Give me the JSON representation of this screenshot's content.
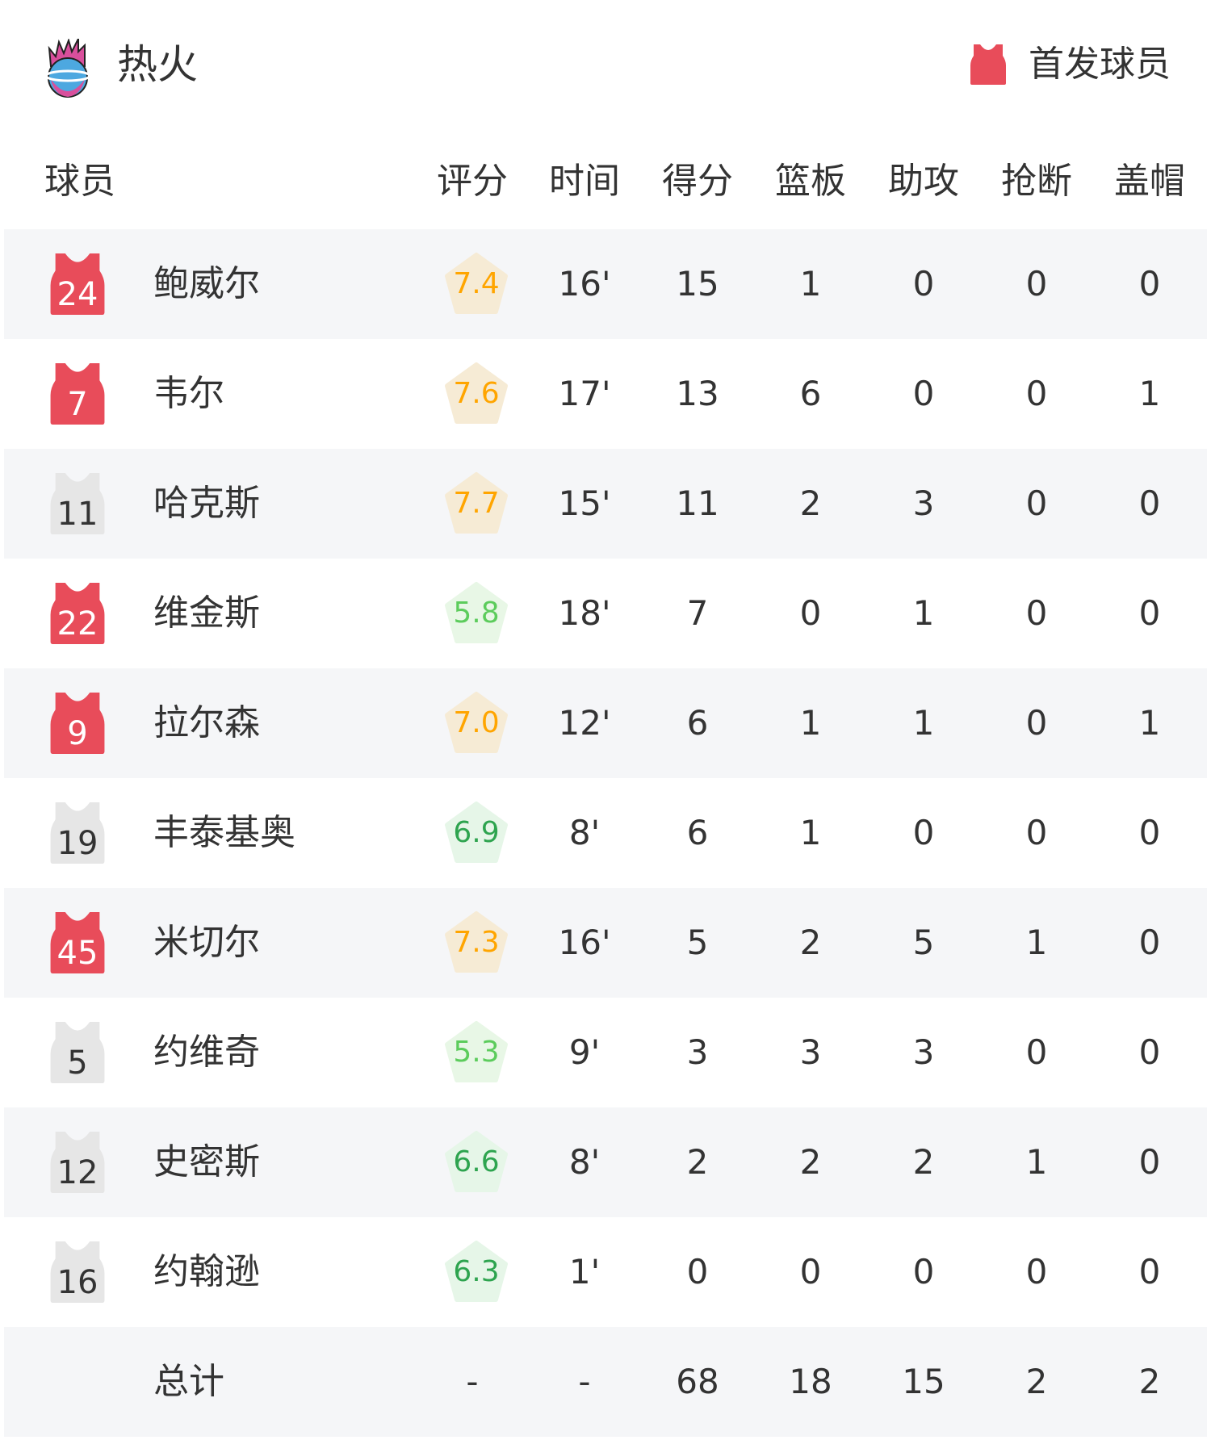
{
  "header": {
    "team": "热火",
    "legend_label": "首发球员"
  },
  "colors": {
    "starter": "#e84c5a",
    "bench": "#e6e6e6",
    "rating_high": "#ffa500",
    "rating_high_bg": "#f6ebd5",
    "rating_mid": "#2ea44f",
    "rating_mid_bg": "#e6f6e8",
    "rating_low": "#5ccc5c",
    "rating_low_bg": "#e8f7e6"
  },
  "columns": [
    "球员",
    "评分",
    "时间",
    "得分",
    "篮板",
    "助攻",
    "抢断",
    "盖帽"
  ],
  "players": [
    {
      "number": "24",
      "starter": true,
      "name": "鲍威尔",
      "rating": "7.4",
      "time": "16'",
      "pts": "15",
      "reb": "1",
      "ast": "0",
      "stl": "0",
      "blk": "0"
    },
    {
      "number": "7",
      "starter": true,
      "name": "韦尔",
      "rating": "7.6",
      "time": "17'",
      "pts": "13",
      "reb": "6",
      "ast": "0",
      "stl": "0",
      "blk": "1"
    },
    {
      "number": "11",
      "starter": false,
      "name": "哈克斯",
      "rating": "7.7",
      "time": "15'",
      "pts": "11",
      "reb": "2",
      "ast": "3",
      "stl": "0",
      "blk": "0"
    },
    {
      "number": "22",
      "starter": true,
      "name": "维金斯",
      "rating": "5.8",
      "time": "18'",
      "pts": "7",
      "reb": "0",
      "ast": "1",
      "stl": "0",
      "blk": "0"
    },
    {
      "number": "9",
      "starter": true,
      "name": "拉尔森",
      "rating": "7.0",
      "time": "12'",
      "pts": "6",
      "reb": "1",
      "ast": "1",
      "stl": "0",
      "blk": "1"
    },
    {
      "number": "19",
      "starter": false,
      "name": "丰泰基奥",
      "rating": "6.9",
      "time": "8'",
      "pts": "6",
      "reb": "1",
      "ast": "0",
      "stl": "0",
      "blk": "0"
    },
    {
      "number": "45",
      "starter": true,
      "name": "米切尔",
      "rating": "7.3",
      "time": "16'",
      "pts": "5",
      "reb": "2",
      "ast": "5",
      "stl": "1",
      "blk": "0"
    },
    {
      "number": "5",
      "starter": false,
      "name": "约维奇",
      "rating": "5.3",
      "time": "9'",
      "pts": "3",
      "reb": "3",
      "ast": "3",
      "stl": "0",
      "blk": "0"
    },
    {
      "number": "12",
      "starter": false,
      "name": "史密斯",
      "rating": "6.6",
      "time": "8'",
      "pts": "2",
      "reb": "2",
      "ast": "2",
      "stl": "1",
      "blk": "0"
    },
    {
      "number": "16",
      "starter": false,
      "name": "约翰逊",
      "rating": "6.3",
      "time": "1'",
      "pts": "0",
      "reb": "0",
      "ast": "0",
      "stl": "0",
      "blk": "0"
    }
  ],
  "totals": {
    "label": "总计",
    "rating": "-",
    "time": "-",
    "pts": "68",
    "reb": "18",
    "ast": "15",
    "stl": "2",
    "blk": "2"
  }
}
